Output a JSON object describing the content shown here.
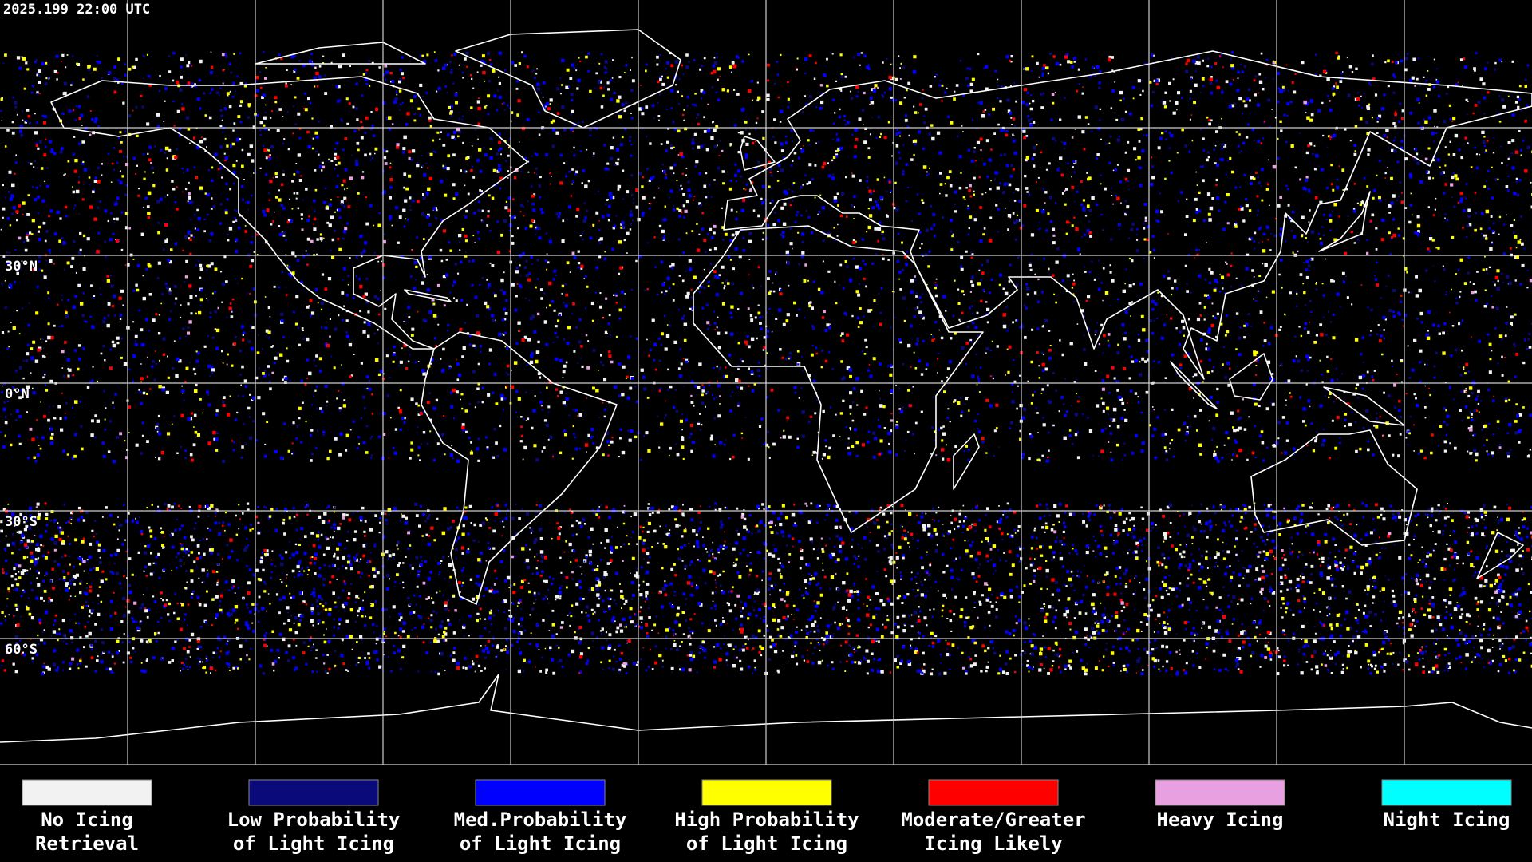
{
  "timestamp": "2025.199 22:00 UTC",
  "latitude_labels": [
    "30°N",
    "0°N",
    "30°S",
    "60°S"
  ],
  "legend": [
    {
      "label": [
        "No Icing",
        "Retrieval"
      ],
      "color": "#f2f2f2"
    },
    {
      "label": [
        "Low Probability",
        "of Light Icing"
      ],
      "color": "#0a0a7a"
    },
    {
      "label": [
        "Med.Probability",
        "of Light Icing"
      ],
      "color": "#0000ff"
    },
    {
      "label": [
        "High Probability",
        "of Light Icing"
      ],
      "color": "#ffff00"
    },
    {
      "label": [
        "Moderate/Greater",
        "Icing Likely"
      ],
      "color": "#ff0000"
    },
    {
      "label": [
        "Heavy Icing"
      ],
      "color": "#e8a0e0"
    },
    {
      "label": [
        "Night Icing"
      ],
      "color": "#00ffff"
    }
  ]
}
